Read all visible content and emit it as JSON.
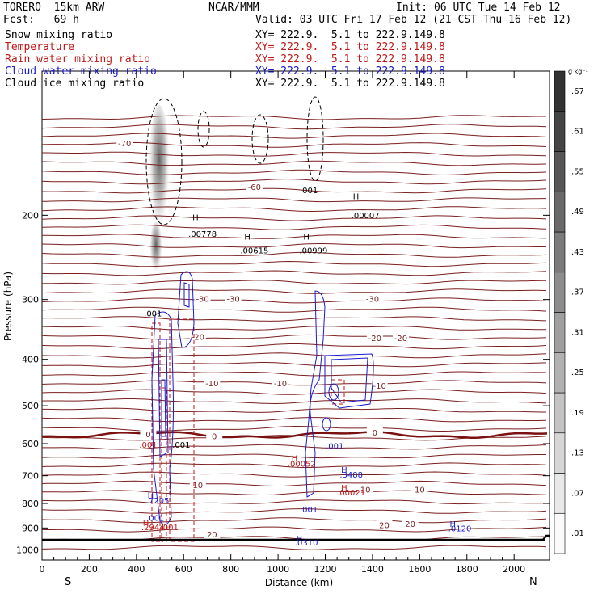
{
  "header": {
    "model": "TORERO  15km ARW",
    "center": "NCAR/MMM",
    "init": "Init: 06 UTC Tue 14 Feb 12",
    "fcst": "Fcst:   69 h",
    "valid": "Valid: 03 UTC Fri 17 Feb 12 (21 CST Thu 16 Feb 12)"
  },
  "legend": [
    {
      "name": "Snow mixing ratio",
      "xy": "XY= 222.9.  5.1 to 222.9.149.8",
      "color": "#000000"
    },
    {
      "name": "Temperature",
      "xy": "XY= 222.9.  5.1 to 222.9.149.8",
      "color": "#c01818"
    },
    {
      "name": "Rain water mixing ratio",
      "xy": "XY= 222.9.  5.1 to 222.9.149.8",
      "color": "#c01818"
    },
    {
      "name": "Cloud water mixing ratio",
      "xy": "XY= 222.9.  5.1 to 222.9.149.8",
      "color": "#1a1acc"
    },
    {
      "name": "Cloud ice mixing ratio",
      "xy": "XY= 222.9.  5.1 to 222.9.149.8",
      "color": "#000000"
    }
  ],
  "chart_data": {
    "type": "cross-section",
    "xlabel": "Distance (km)",
    "ylabel": "Pressure (hPa)",
    "xlim": [
      0,
      2150
    ],
    "xticks": [
      0,
      200,
      400,
      600,
      800,
      1000,
      1200,
      1400,
      1600,
      1800,
      2000
    ],
    "ylim": [
      1050,
      100
    ],
    "yscale": "log",
    "yticks": [
      200,
      300,
      400,
      500,
      600,
      700,
      800,
      900,
      1000
    ],
    "endpoints": {
      "left": "S",
      "right": "N"
    },
    "colorbar": {
      "unit": "g kg⁻¹",
      "labels": [
        ".01",
        ".07",
        ".13",
        ".19",
        ".25",
        ".31",
        ".37",
        ".43",
        ".49",
        ".55",
        ".61",
        ".67"
      ]
    },
    "temperature_isotherms": [
      {
        "label": "-70",
        "p": 152
      },
      {
        "label": "-60",
        "p": 202
      },
      {
        "label": "-30",
        "p": 300
      },
      {
        "label": "-20",
        "p": 370
      },
      {
        "label": "-10",
        "p": 462
      },
      {
        "label": "0",
        "p": 575
      },
      {
        "label": "10",
        "p": 745
      },
      {
        "label": "20",
        "p": 895
      }
    ],
    "temperature_labels": [
      {
        "text": "-70",
        "x": 350,
        "p": 142
      },
      {
        "text": "-60",
        "x": 900,
        "p": 175
      },
      {
        "text": "-30",
        "x": 680,
        "p": 300
      },
      {
        "text": "-30",
        "x": 810,
        "p": 300
      },
      {
        "text": "-30",
        "x": 1400,
        "p": 300
      },
      {
        "text": "-20",
        "x": 660,
        "p": 360
      },
      {
        "text": "-20",
        "x": 1410,
        "p": 362
      },
      {
        "text": "-20",
        "x": 1520,
        "p": 362
      },
      {
        "text": "-10",
        "x": 720,
        "p": 450
      },
      {
        "text": "-10",
        "x": 1010,
        "p": 450
      },
      {
        "text": "-10",
        "x": 1430,
        "p": 455
      },
      {
        "text": "0",
        "x": 450,
        "p": 575
      },
      {
        "text": "0",
        "x": 730,
        "p": 580
      },
      {
        "text": "0",
        "x": 1410,
        "p": 570
      },
      {
        "text": "10",
        "x": 660,
        "p": 735
      },
      {
        "text": "10",
        "x": 1370,
        "p": 750
      },
      {
        "text": "10",
        "x": 1600,
        "p": 750
      },
      {
        "text": "20",
        "x": 1450,
        "p": 890
      },
      {
        "text": "20",
        "x": 1560,
        "p": 885
      },
      {
        "text": "20",
        "x": 720,
        "p": 930
      }
    ],
    "value_labels": [
      {
        "text": ".001",
        "x": 470,
        "p": 325,
        "color": "#000000"
      },
      {
        "text": "H",
        "x": 650,
        "p": 205,
        "color": "#000000"
      },
      {
        "text": ".00778",
        "x": 680,
        "p": 222,
        "color": "#000000"
      },
      {
        "text": "H",
        "x": 870,
        "p": 225,
        "color": "#000000"
      },
      {
        "text": ".00615",
        "x": 900,
        "p": 240,
        "color": "#000000"
      },
      {
        "text": ".001",
        "x": 1130,
        "p": 180,
        "color": "#000000"
      },
      {
        "text": "H",
        "x": 1120,
        "p": 225,
        "color": "#000000"
      },
      {
        "text": ".00999",
        "x": 1150,
        "p": 240,
        "color": "#000000"
      },
      {
        "text": "H",
        "x": 1330,
        "p": 185,
        "color": "#000000"
      },
      {
        "text": ".00007",
        "x": 1370,
        "p": 203,
        "color": "#000000"
      },
      {
        "text": ".001",
        "x": 450,
        "p": 612,
        "color": "#c01818"
      },
      {
        "text": ".001",
        "x": 590,
        "p": 612,
        "color": "#000000"
      },
      {
        "text": "H",
        "x": 1070,
        "p": 652,
        "color": "#c01818"
      },
      {
        "text": ".00052",
        "x": 1100,
        "p": 670,
        "color": "#c01818"
      },
      {
        "text": "H",
        "x": 1280,
        "p": 752,
        "color": "#c01818"
      },
      {
        "text": ".00021",
        "x": 1310,
        "p": 770,
        "color": "#c01818"
      },
      {
        "text": ".001",
        "x": 1240,
        "p": 615,
        "color": "#1a1acc"
      },
      {
        "text": "H",
        "x": 1280,
        "p": 690,
        "color": "#1a1acc"
      },
      {
        "text": ".3488",
        "x": 1310,
        "p": 707,
        "color": "#1a1acc"
      },
      {
        "text": "H",
        "x": 460,
        "p": 780,
        "color": "#1a1acc"
      },
      {
        "text": ".7205",
        "x": 490,
        "p": 800,
        "color": "#1a1acc"
      },
      {
        "text": ".001",
        "x": 1130,
        "p": 835,
        "color": "#1a1acc"
      },
      {
        "text": ".001",
        "x": 480,
        "p": 870,
        "color": "#1a1acc"
      },
      {
        "text": "H",
        "x": 440,
        "p": 890,
        "color": "#c01818"
      },
      {
        "text": ".2944",
        "x": 470,
        "p": 910,
        "color": "#c01818"
      },
      {
        "text": ".001",
        "x": 540,
        "p": 910,
        "color": "#c01818"
      },
      {
        "text": "H",
        "x": 1090,
        "p": 960,
        "color": "#1a1acc"
      },
      {
        "text": ".0310",
        "x": 1120,
        "p": 980,
        "color": "#1a1acc"
      },
      {
        "text": "H",
        "x": 1740,
        "p": 895,
        "color": "#1a1acc"
      },
      {
        "text": ".0120",
        "x": 1770,
        "p": 915,
        "color": "#1a1acc"
      }
    ]
  }
}
